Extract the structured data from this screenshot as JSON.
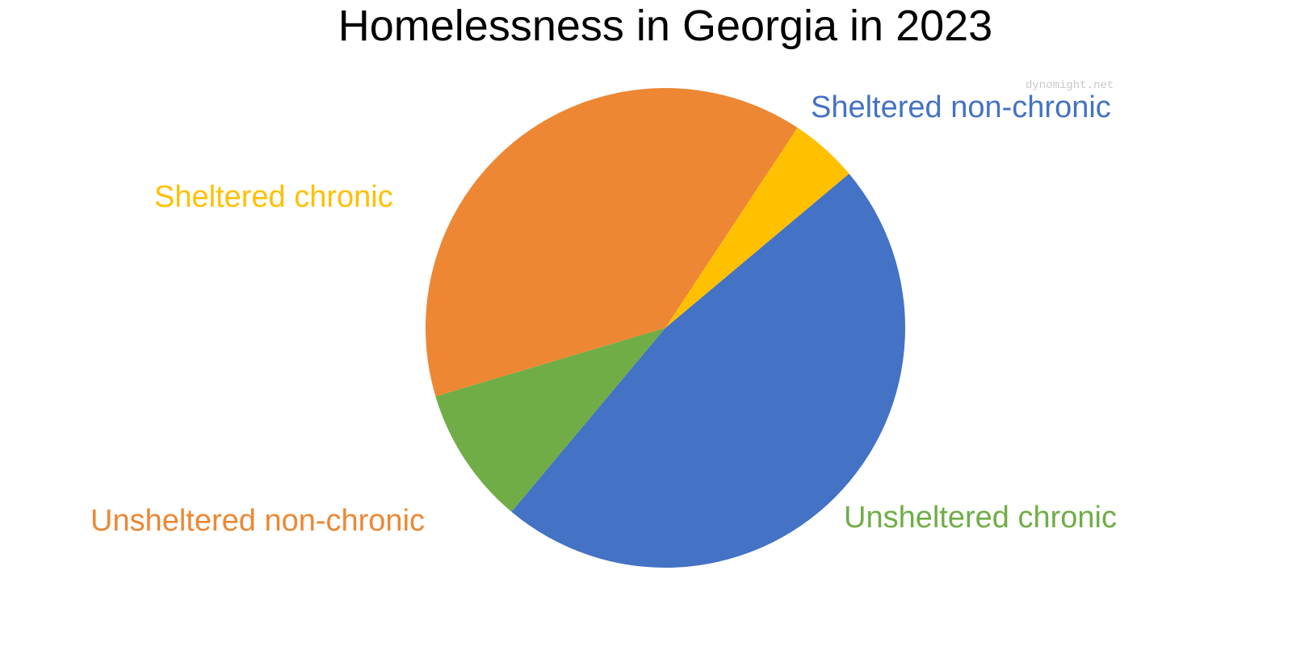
{
  "chart_data": {
    "type": "pie",
    "title": "Homelessness in Georgia in 2023",
    "start_angle_deg": -40,
    "direction": "clockwise",
    "slices": [
      {
        "label": "Sheltered non-chronic",
        "value": 47.2,
        "color": "#4472c4"
      },
      {
        "label": "Unsheltered chronic",
        "value": 9.3,
        "color": "#70ad47"
      },
      {
        "label": "Unsheltered non-chronic",
        "value": 38.9,
        "color": "#ed8733"
      },
      {
        "label": "Sheltered chronic",
        "value": 4.6,
        "color": "#ffc000"
      }
    ]
  },
  "watermark": "dynomight.net"
}
